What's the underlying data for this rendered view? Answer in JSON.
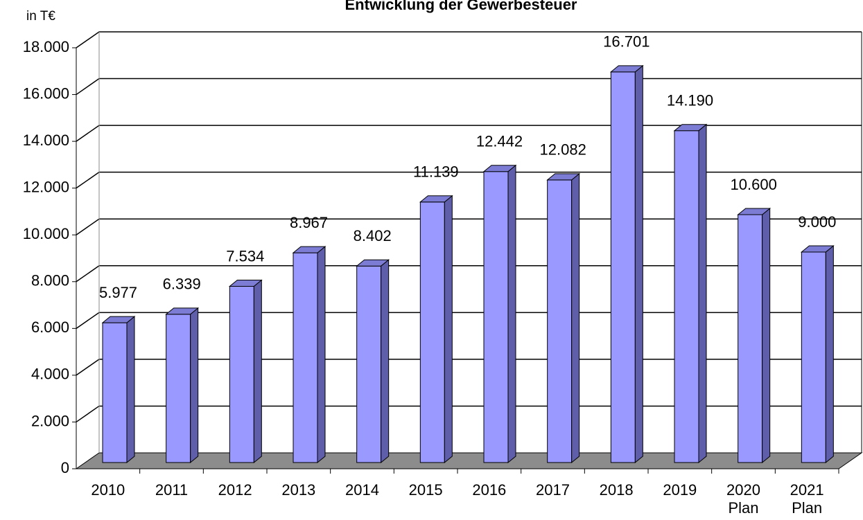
{
  "chart_data": {
    "type": "bar",
    "title": "Entwicklung  der Gewerbesteuer",
    "y_unit": "in T€",
    "categories": [
      "2010",
      "2011",
      "2012",
      "2013",
      "2014",
      "2015",
      "2016",
      "2017",
      "2018",
      "2019",
      "2020\nPlan",
      "2021\nPlan"
    ],
    "values": [
      5977,
      6339,
      7534,
      8967,
      8402,
      11139,
      12442,
      12082,
      16701,
      14190,
      10600,
      9000
    ],
    "value_labels": [
      "5.977",
      "6.339",
      "7.534",
      "8.967",
      "8.402",
      "11.139",
      "12.442",
      "12.082",
      "16.701",
      "14.190",
      "10.600",
      "9.000"
    ],
    "color": "#9999ff",
    "ylim": [
      0,
      18000
    ],
    "yticks": [
      0,
      {
        "value": 2000,
        "label": "2.000"
      },
      {
        "value": 4000,
        "label": "4.000"
      },
      {
        "value": 6000,
        "label": "6.000"
      },
      {
        "value": 8000,
        "label": "8.000"
      },
      {
        "value": 10000,
        "label": "10.000"
      },
      {
        "value": 12000,
        "label": "12.000"
      },
      {
        "value": 14000,
        "label": "14.000"
      },
      {
        "value": 16000,
        "label": "16.000"
      },
      {
        "value": 18000,
        "label": "18.000"
      }
    ],
    "grid": true
  }
}
